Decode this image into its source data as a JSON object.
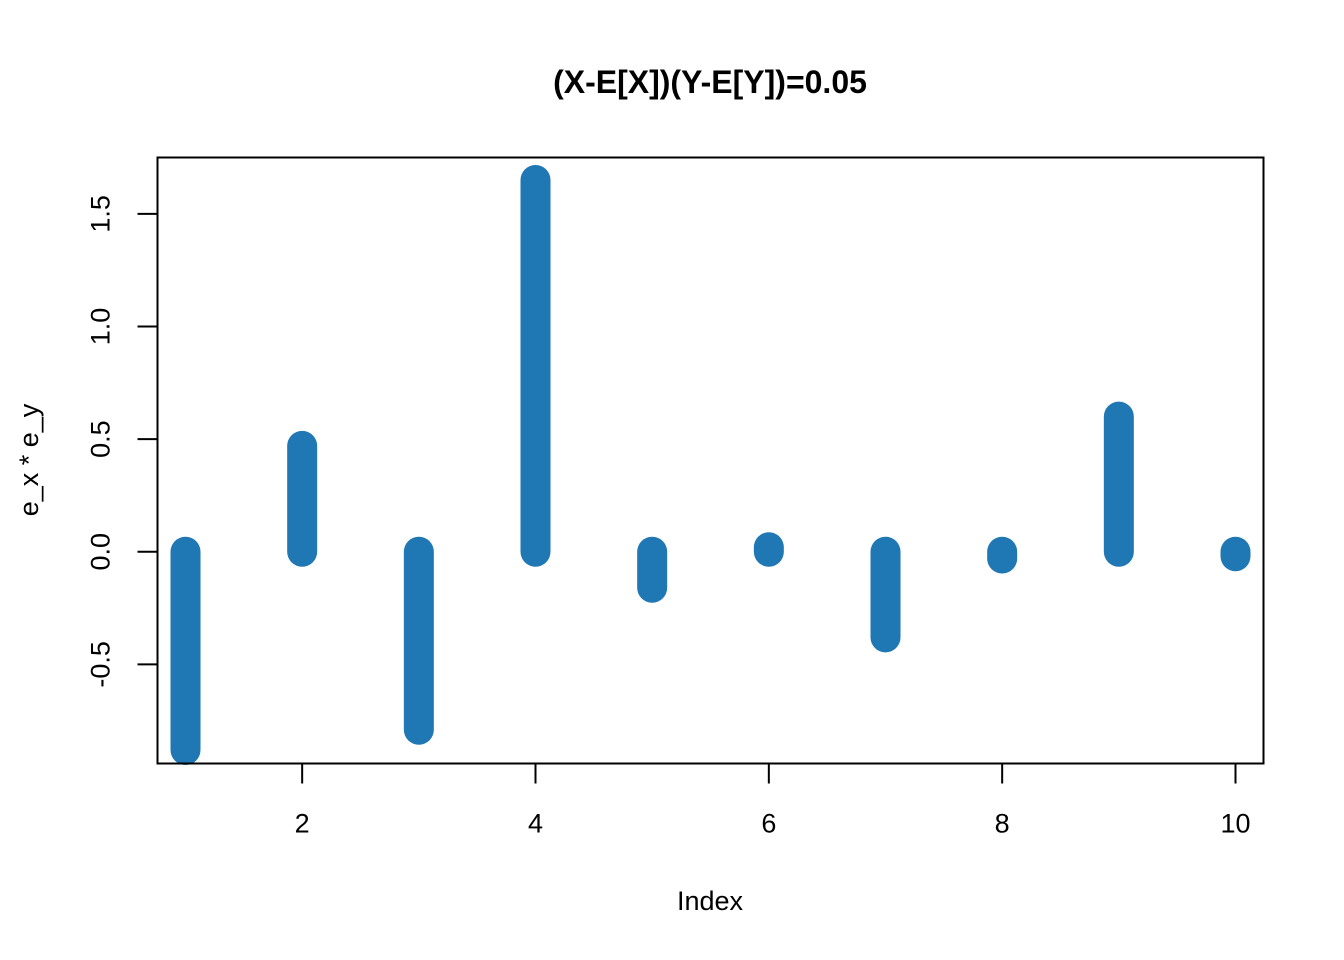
{
  "chart_data": {
    "type": "bar",
    "title": "(X-E[X])(Y-E[Y])=0.05",
    "xlabel": "Index",
    "ylabel": "e_x * e_y",
    "x": [
      1,
      2,
      3,
      4,
      5,
      6,
      7,
      8,
      9,
      10
    ],
    "values": [
      -0.88,
      0.47,
      -0.79,
      1.65,
      -0.16,
      0.02,
      -0.38,
      -0.03,
      0.6,
      -0.02
    ],
    "xlim": [
      0.76,
      10.24
    ],
    "ylim": [
      -0.94,
      1.75
    ],
    "x_ticks": [
      2,
      4,
      6,
      8,
      10
    ],
    "x_tick_labels": [
      "2",
      "4",
      "6",
      "8",
      "10"
    ],
    "y_ticks": [
      -0.5,
      0.0,
      0.5,
      1.0,
      1.5
    ],
    "y_tick_labels": [
      "-0.5",
      "0.0",
      "0.5",
      "1.0",
      "1.5"
    ],
    "bar_color": "#1f77b4",
    "grid": false,
    "legend": "none"
  }
}
